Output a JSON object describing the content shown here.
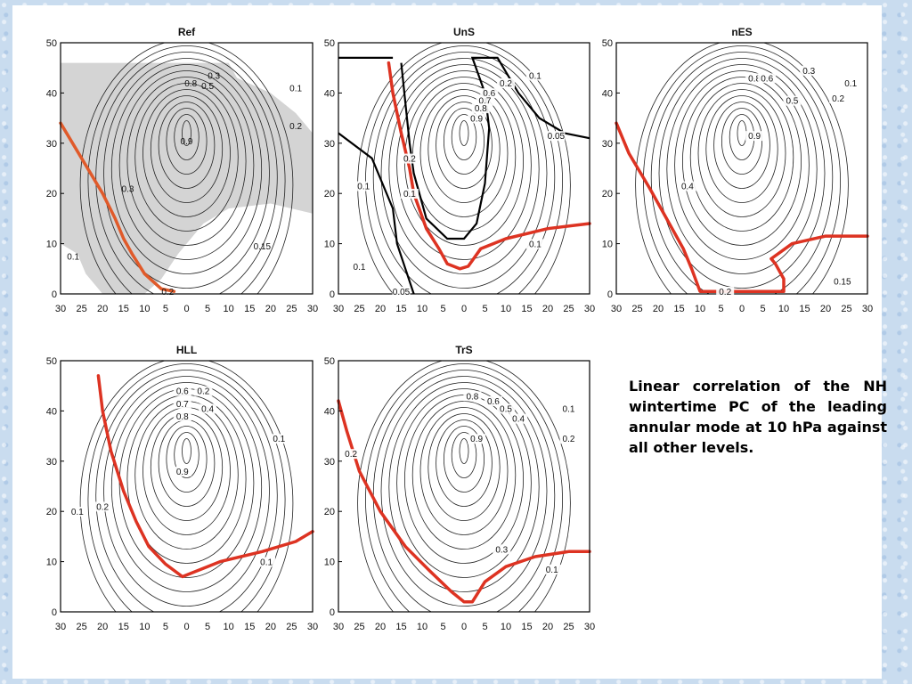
{
  "caption": "Linear correlation of the NH wintertime PC of the leading annular mode at 10 hPa against all other levels.",
  "chart_data": [
    {
      "type": "contour",
      "title": "Ref",
      "x_tick_labels": [
        "30",
        "25",
        "20",
        "15",
        "10",
        "5",
        "0",
        "5",
        "10",
        "15",
        "20",
        "25",
        "30"
      ],
      "y_ticks": [
        0,
        10,
        20,
        30,
        40,
        50
      ],
      "xlim": [
        -30,
        30
      ],
      "ylim": [
        0,
        50
      ],
      "peak_label": "0.9",
      "contour_labels": [
        "0.8",
        "0.5",
        "0.3",
        "0.1",
        "0.2",
        "0.9",
        "0.3",
        "0.15",
        "0.1",
        "0.2"
      ],
      "highlighted_contour_color": "#e05a2a",
      "shading": "grey region where correlation is significant"
    },
    {
      "type": "contour",
      "title": "UnS",
      "x_tick_labels": [
        "30",
        "25",
        "20",
        "15",
        "10",
        "5",
        "0",
        "5",
        "10",
        "15",
        "20",
        "25",
        "30"
      ],
      "y_ticks": [
        0,
        10,
        20,
        30,
        40,
        50
      ],
      "xlim": [
        -30,
        30
      ],
      "ylim": [
        0,
        50
      ],
      "peak_label": "0.9",
      "contour_labels": [
        "0.6",
        "0.7",
        "0.8",
        "0.9",
        "0.2",
        "0.1",
        "0.05",
        "0.2",
        "0.1",
        "0.1",
        "0.1",
        "0.1",
        "0.05"
      ],
      "highlighted_contour_color": "#dd3322"
    },
    {
      "type": "contour",
      "title": "nES",
      "x_tick_labels": [
        "30",
        "25",
        "20",
        "15",
        "10",
        "5",
        "0",
        "5",
        "10",
        "15",
        "20",
        "25",
        "30"
      ],
      "y_ticks": [
        0,
        10,
        20,
        30,
        40,
        50
      ],
      "xlim": [
        -30,
        30
      ],
      "ylim": [
        0,
        50
      ],
      "peak_label": "0.9",
      "contour_labels": [
        "0.8",
        "0.6",
        "0.3",
        "0.1",
        "0.5",
        "0.2",
        "0.9",
        "0.4",
        "0.15",
        "0.2"
      ],
      "highlighted_contour_color": "#dd3322"
    },
    {
      "type": "contour",
      "title": "HLL",
      "x_tick_labels": [
        "30",
        "25",
        "20",
        "15",
        "10",
        "5",
        "0",
        "5",
        "10",
        "15",
        "20",
        "25",
        "30"
      ],
      "y_ticks": [
        0,
        10,
        20,
        30,
        40,
        50
      ],
      "xlim": [
        -30,
        30
      ],
      "ylim": [
        0,
        50
      ],
      "peak_label": "0.9",
      "contour_labels": [
        "0.6",
        "0.2",
        "0.7",
        "0.4",
        "0.8",
        "0.1",
        "0.9",
        "0.1",
        "0.2",
        "0.1"
      ],
      "highlighted_contour_color": "#dd3322"
    },
    {
      "type": "contour",
      "title": "TrS",
      "x_tick_labels": [
        "30",
        "25",
        "20",
        "15",
        "10",
        "5",
        "0",
        "5",
        "10",
        "15",
        "20",
        "25",
        "30"
      ],
      "y_ticks": [
        0,
        10,
        20,
        30,
        40,
        50
      ],
      "xlim": [
        -30,
        30
      ],
      "ylim": [
        0,
        50
      ],
      "peak_label": "0.9",
      "contour_labels": [
        "0.8",
        "0.6",
        "0.5",
        "0.4",
        "0.1",
        "0.2",
        "0.9",
        "0.2",
        "0.3",
        "0.1"
      ],
      "highlighted_contour_color": "#dd3322"
    }
  ]
}
